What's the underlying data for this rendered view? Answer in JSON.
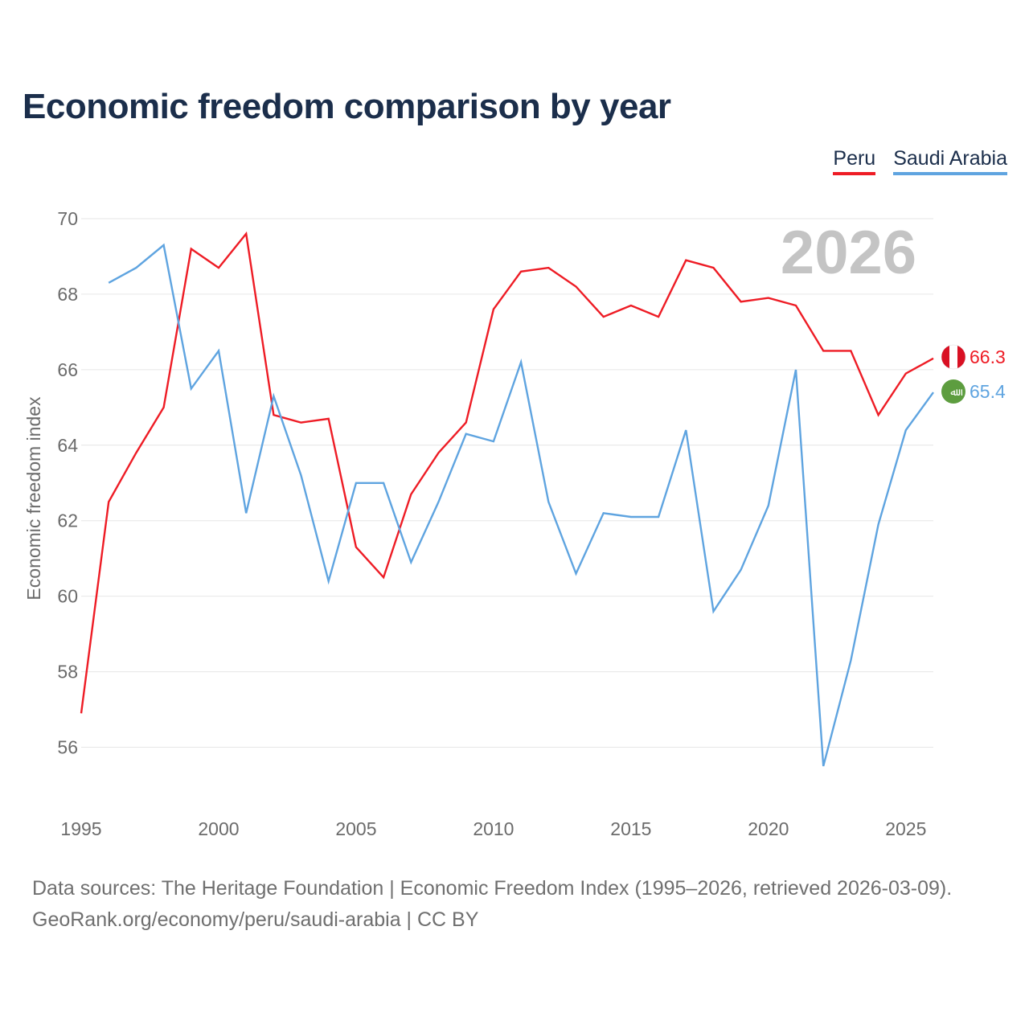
{
  "chart_data": {
    "type": "line",
    "title": "Economic freedom comparison by year",
    "ylabel": "Economic freedom index",
    "xlabel": "",
    "watermark_year": "2026",
    "xlim": [
      1995,
      2026
    ],
    "ylim": [
      54.5,
      70
    ],
    "yticks": [
      56,
      58,
      60,
      62,
      64,
      66,
      68,
      70
    ],
    "xticks": [
      1995,
      2000,
      2005,
      2010,
      2015,
      2020,
      2025
    ],
    "grid": true,
    "legend_position": "top-right",
    "series": [
      {
        "name": "Peru",
        "color": "#ee1c25",
        "end_label": "66.3",
        "x": [
          1995,
          1996,
          1997,
          1998,
          1999,
          2000,
          2001,
          2002,
          2003,
          2004,
          2005,
          2006,
          2007,
          2008,
          2009,
          2010,
          2011,
          2012,
          2013,
          2014,
          2015,
          2016,
          2017,
          2018,
          2019,
          2020,
          2021,
          2022,
          2023,
          2024,
          2025,
          2026
        ],
        "values": [
          56.9,
          62.5,
          63.8,
          65.0,
          69.2,
          68.7,
          69.6,
          64.8,
          64.6,
          64.7,
          61.3,
          60.5,
          62.7,
          63.8,
          64.6,
          67.6,
          68.6,
          68.7,
          68.2,
          67.4,
          67.7,
          67.4,
          68.9,
          68.7,
          67.8,
          67.9,
          67.7,
          66.5,
          66.5,
          64.8,
          65.9,
          66.3
        ]
      },
      {
        "name": "Saudi Arabia",
        "color": "#5fa4e0",
        "end_label": "65.4",
        "x": [
          1996,
          1997,
          1998,
          1999,
          2000,
          2001,
          2002,
          2003,
          2004,
          2005,
          2006,
          2007,
          2008,
          2009,
          2010,
          2011,
          2012,
          2013,
          2014,
          2015,
          2016,
          2017,
          2018,
          2019,
          2020,
          2021,
          2022,
          2023,
          2024,
          2025,
          2026
        ],
        "values": [
          68.3,
          68.7,
          69.3,
          65.5,
          66.5,
          62.2,
          65.3,
          63.2,
          60.4,
          63.0,
          63.0,
          60.9,
          62.5,
          64.3,
          64.1,
          66.2,
          62.5,
          60.6,
          62.2,
          62.1,
          62.1,
          64.4,
          59.6,
          60.7,
          62.4,
          66.0,
          55.5,
          58.3,
          61.9,
          64.4,
          65.4
        ]
      }
    ]
  },
  "legend": {
    "peru": "Peru",
    "saudi": "Saudi Arabia"
  },
  "flags": {
    "saudi_script": "ﷲ"
  },
  "source": {
    "line1": "Data sources: The Heritage Foundation | Economic Freedom Index (1995–2026, retrieved 2026-03-09).",
    "line2": "GeoRank.org/economy/peru/saudi-arabia | CC BY"
  }
}
